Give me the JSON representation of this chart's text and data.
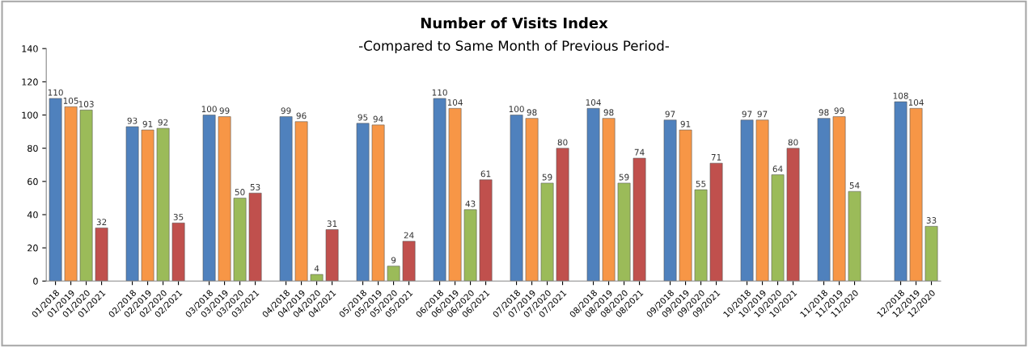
{
  "chart_data": {
    "type": "bar",
    "title": "Number of Visits Index",
    "subtitle": "-Compared to Same Month of Previous Period-",
    "categories": [
      "01/2018",
      "01/2019",
      "01/2020",
      "01/2021",
      null,
      "02/2018",
      "02/2019",
      "02/2020",
      "02/2021",
      null,
      "03/2018",
      "03/2019",
      "03/2020",
      "03/2021",
      null,
      "04/2018",
      "04/2019",
      "04/2020",
      "04/2021",
      null,
      "05/2018",
      "05/2019",
      "05/2020",
      "05/2021",
      null,
      "06/2018",
      "06/2019",
      "06/2020",
      "06/2021",
      null,
      "07/2018",
      "07/2019",
      "07/2020",
      "07/2021",
      null,
      "08/2018",
      "08/2019",
      "08/2020",
      "08/2021",
      null,
      "09/2018",
      "09/2019",
      "09/2020",
      "09/2021",
      null,
      "10/2018",
      "10/2019",
      "10/2020",
      "10/2021",
      null,
      "11/2018",
      "11/2019",
      "11/2020",
      null,
      null,
      "12/2018",
      "12/2019",
      "12/2020"
    ],
    "values": [
      110,
      105,
      103,
      32,
      null,
      93,
      91,
      92,
      35,
      null,
      100,
      99,
      50,
      53,
      null,
      99,
      96,
      4,
      31,
      null,
      95,
      94,
      9,
      24,
      null,
      110,
      104,
      43,
      61,
      null,
      100,
      98,
      59,
      80,
      null,
      104,
      98,
      59,
      74,
      null,
      97,
      91,
      55,
      71,
      null,
      97,
      97,
      64,
      80,
      null,
      98,
      99,
      54,
      null,
      null,
      108,
      104,
      33
    ],
    "colors": [
      "#4f81bd",
      "#f79646",
      "#9bbb59",
      "#c0504d",
      null,
      "#4f81bd",
      "#f79646",
      "#9bbb59",
      "#c0504d",
      null,
      "#4f81bd",
      "#f79646",
      "#9bbb59",
      "#c0504d",
      null,
      "#4f81bd",
      "#f79646",
      "#9bbb59",
      "#c0504d",
      null,
      "#4f81bd",
      "#f79646",
      "#9bbb59",
      "#c0504d",
      null,
      "#4f81bd",
      "#f79646",
      "#9bbb59",
      "#c0504d",
      null,
      "#4f81bd",
      "#f79646",
      "#9bbb59",
      "#c0504d",
      null,
      "#4f81bd",
      "#f79646",
      "#9bbb59",
      "#c0504d",
      null,
      "#4f81bd",
      "#f79646",
      "#9bbb59",
      "#c0504d",
      null,
      "#4f81bd",
      "#f79646",
      "#9bbb59",
      "#c0504d",
      null,
      "#4f81bd",
      "#f79646",
      "#9bbb59",
      null,
      null,
      "#4f81bd",
      "#f79646",
      "#9bbb59"
    ],
    "ylim": [
      0,
      140
    ],
    "yticks": [
      0,
      20,
      40,
      60,
      80,
      100,
      120,
      140
    ],
    "data_labels": true
  }
}
